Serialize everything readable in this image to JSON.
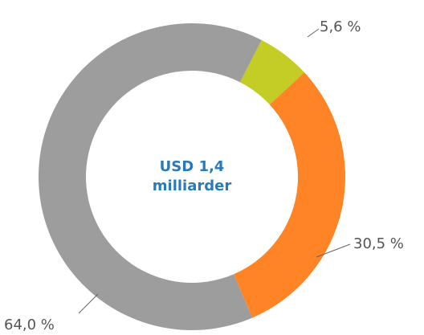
{
  "chart_data": {
    "type": "donut",
    "values": [
      5.6,
      30.5,
      64.0
    ],
    "value_labels": [
      "5,6 %",
      "30,5 %",
      "64,0 %"
    ],
    "colors": [
      "#c4cd25",
      "#ff8426",
      "#9d9d9d"
    ],
    "center_text": [
      "USD 1,4",
      "milliarder"
    ]
  }
}
